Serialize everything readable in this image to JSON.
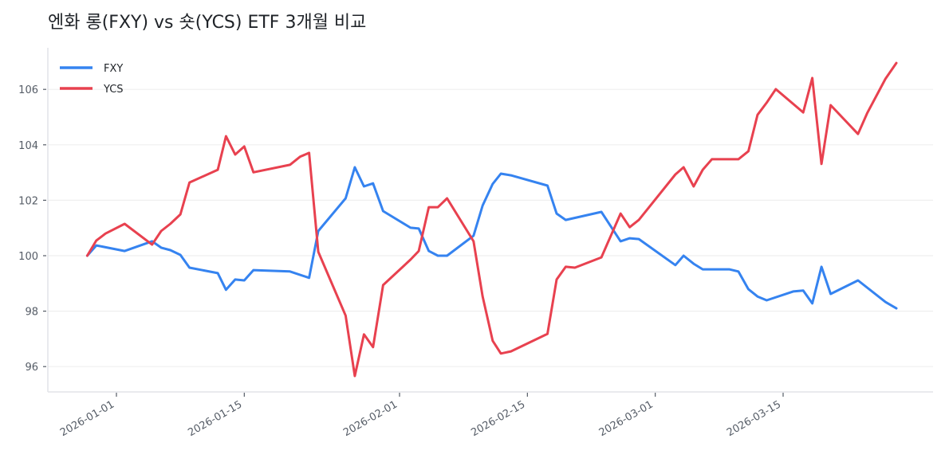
{
  "title": "엔화 롱(FXY) vs 숏(YCS) ETF 3개월 비교",
  "colors": {
    "FXY": "#3583f0",
    "YCS": "#e8414f",
    "grid": "#efefef",
    "axis": "#e2e4e8",
    "tick": "#555c66"
  },
  "legend": [
    {
      "name": "FXY",
      "color": "#3583f0"
    },
    {
      "name": "YCS",
      "color": "#e8414f"
    }
  ],
  "chart_data": {
    "type": "line",
    "title": "엔화 롱(FXY) vs 숏(YCS) ETF 3개월 비교",
    "xlabel": "",
    "ylabel": "",
    "ylim": [
      95.1,
      107.4
    ],
    "yticks": [
      96,
      98,
      100,
      102,
      104,
      106
    ],
    "xticks": [
      "2026-01-01",
      "2026-01-15",
      "2026-02-01",
      "2026-02-15",
      "2026-03-01",
      "2026-03-15"
    ],
    "x_day_offsets_note": "days since 2026-01-01",
    "grid": true,
    "legend_position": "upper left",
    "series": [
      {
        "name": "FXY",
        "x": [
          -3.2,
          -2.2,
          0.9,
          3.9,
          4.9,
          5.9,
          7.0,
          8.0,
          11.1,
          12.0,
          13.0,
          14.0,
          15.0,
          19.0,
          21.1,
          22.1,
          25.1,
          26.1,
          27.1,
          28.1,
          29.2,
          32.2,
          33.1,
          34.2,
          35.2,
          36.2,
          39.1,
          40.1,
          41.2,
          42.1,
          43.2,
          47.2,
          48.2,
          49.2,
          53.1,
          55.2,
          56.2,
          57.2,
          61.2,
          62.1,
          63.2,
          64.2,
          67.1,
          68.1,
          69.2,
          70.2,
          71.2,
          74.1,
          75.2,
          76.2,
          77.2,
          78.2,
          81.2,
          84.2,
          85.4
        ],
        "values": [
          100.0,
          100.37,
          100.17,
          100.52,
          100.29,
          100.2,
          100.03,
          99.57,
          99.37,
          98.77,
          99.14,
          99.11,
          99.48,
          99.43,
          99.2,
          100.89,
          102.07,
          103.19,
          102.5,
          102.61,
          101.61,
          101.01,
          100.98,
          100.17,
          100.0,
          100.0,
          100.72,
          101.81,
          102.59,
          102.96,
          102.9,
          102.53,
          101.52,
          101.29,
          101.58,
          100.52,
          100.63,
          100.6,
          99.66,
          100.0,
          99.71,
          99.51,
          99.51,
          99.43,
          98.79,
          98.53,
          98.39,
          98.71,
          98.74,
          98.28,
          99.6,
          98.62,
          99.11,
          98.33,
          98.1
        ]
      },
      {
        "name": "YCS",
        "x": [
          -3.2,
          -2.2,
          -1.2,
          0.9,
          3.9,
          4.9,
          5.9,
          7.0,
          8.0,
          11.1,
          12.0,
          13.0,
          14.0,
          15.0,
          19.0,
          20.1,
          21.1,
          22.1,
          25.1,
          26.1,
          27.1,
          28.1,
          29.2,
          32.2,
          33.1,
          34.2,
          35.2,
          36.2,
          39.1,
          40.1,
          41.2,
          42.1,
          43.2,
          47.2,
          48.2,
          49.2,
          50.2,
          53.1,
          55.2,
          56.2,
          57.2,
          61.2,
          62.1,
          63.2,
          64.2,
          65.2,
          68.1,
          69.2,
          70.2,
          71.2,
          72.2,
          75.2,
          76.2,
          77.2,
          78.2,
          81.2,
          82.2,
          84.2,
          85.4
        ],
        "values": [
          100.0,
          100.55,
          100.8,
          101.15,
          100.4,
          100.89,
          101.15,
          101.49,
          102.64,
          103.1,
          104.31,
          103.65,
          103.94,
          103.01,
          103.28,
          103.57,
          103.71,
          100.14,
          97.84,
          95.66,
          97.16,
          96.7,
          98.94,
          99.86,
          100.17,
          101.75,
          101.75,
          102.07,
          100.52,
          98.53,
          96.93,
          96.47,
          96.55,
          97.18,
          99.14,
          99.6,
          99.57,
          99.94,
          101.52,
          101.03,
          101.29,
          102.93,
          103.19,
          102.5,
          103.1,
          103.48,
          103.48,
          103.77,
          105.08,
          105.52,
          106.01,
          105.17,
          106.41,
          103.31,
          105.43,
          104.39,
          105.14,
          106.38,
          106.95
        ]
      }
    ]
  }
}
